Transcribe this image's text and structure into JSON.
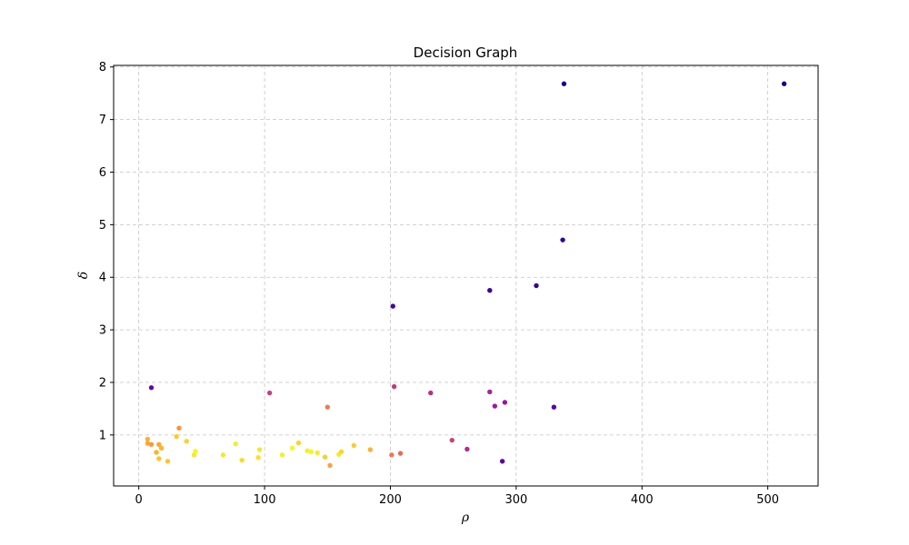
{
  "chart_data": {
    "type": "scatter",
    "title": "Decision Graph",
    "xlabel": "ρ",
    "ylabel": "δ",
    "xlim": [
      -20,
      540
    ],
    "ylim": [
      0.03,
      8.03
    ],
    "xticks": [
      0,
      100,
      200,
      300,
      400,
      500
    ],
    "yticks": [
      1,
      2,
      3,
      4,
      5,
      6,
      7,
      8
    ],
    "grid": true,
    "colormap": "plasma",
    "points": [
      {
        "x": 338,
        "y": 7.68,
        "color": "#1a0487"
      },
      {
        "x": 513,
        "y": 7.68,
        "color": "#0d0887"
      },
      {
        "x": 337,
        "y": 4.71,
        "color": "#2d0594"
      },
      {
        "x": 316,
        "y": 3.84,
        "color": "#350498"
      },
      {
        "x": 279,
        "y": 3.75,
        "color": "#3b049a"
      },
      {
        "x": 202,
        "y": 3.45,
        "color": "#42049e"
      },
      {
        "x": 10,
        "y": 1.9,
        "color": "#6a00a8"
      },
      {
        "x": 104,
        "y": 1.8,
        "color": "#c5407e"
      },
      {
        "x": 203,
        "y": 1.92,
        "color": "#c03a83"
      },
      {
        "x": 232,
        "y": 1.8,
        "color": "#b52f8c"
      },
      {
        "x": 279,
        "y": 1.82,
        "color": "#a92395"
      },
      {
        "x": 283,
        "y": 1.55,
        "color": "#a01a9c"
      },
      {
        "x": 291,
        "y": 1.62,
        "color": "#9a169f"
      },
      {
        "x": 330,
        "y": 1.53,
        "color": "#5c01a6"
      },
      {
        "x": 150,
        "y": 1.53,
        "color": "#ee7b51"
      },
      {
        "x": 249,
        "y": 0.9,
        "color": "#c7427c"
      },
      {
        "x": 261,
        "y": 0.73,
        "color": "#b12a90"
      },
      {
        "x": 289,
        "y": 0.5,
        "color": "#6001a6"
      },
      {
        "x": 201,
        "y": 0.62,
        "color": "#ed7953"
      },
      {
        "x": 208,
        "y": 0.65,
        "color": "#e66c5c"
      },
      {
        "x": 7,
        "y": 0.92,
        "color": "#fdb030"
      },
      {
        "x": 7,
        "y": 0.84,
        "color": "#fca636"
      },
      {
        "x": 10,
        "y": 0.82,
        "color": "#f9983e"
      },
      {
        "x": 14,
        "y": 0.67,
        "color": "#fbb61a"
      },
      {
        "x": 16,
        "y": 0.55,
        "color": "#fdc328"
      },
      {
        "x": 16,
        "y": 0.82,
        "color": "#fca635"
      },
      {
        "x": 18,
        "y": 0.75,
        "color": "#fdb42f"
      },
      {
        "x": 23,
        "y": 0.5,
        "color": "#fdc627"
      },
      {
        "x": 30,
        "y": 0.97,
        "color": "#fcce25"
      },
      {
        "x": 32,
        "y": 1.13,
        "color": "#f89540"
      },
      {
        "x": 38,
        "y": 0.88,
        "color": "#fbd424"
      },
      {
        "x": 44,
        "y": 0.62,
        "color": "#fde725"
      },
      {
        "x": 45,
        "y": 0.69,
        "color": "#f0f921"
      },
      {
        "x": 67,
        "y": 0.62,
        "color": "#f5e926"
      },
      {
        "x": 77,
        "y": 0.83,
        "color": "#f2f027"
      },
      {
        "x": 82,
        "y": 0.52,
        "color": "#fada24"
      },
      {
        "x": 95,
        "y": 0.57,
        "color": "#fce025"
      },
      {
        "x": 96,
        "y": 0.72,
        "color": "#f6e826"
      },
      {
        "x": 114,
        "y": 0.62,
        "color": "#f3ee27"
      },
      {
        "x": 122,
        "y": 0.75,
        "color": "#f0f921"
      },
      {
        "x": 127,
        "y": 0.85,
        "color": "#fbd524"
      },
      {
        "x": 134,
        "y": 0.7,
        "color": "#f2f027"
      },
      {
        "x": 137,
        "y": 0.68,
        "color": "#f0f921"
      },
      {
        "x": 142,
        "y": 0.66,
        "color": "#f4ed27"
      },
      {
        "x": 148,
        "y": 0.58,
        "color": "#fcce25"
      },
      {
        "x": 152,
        "y": 0.42,
        "color": "#f9a242"
      },
      {
        "x": 159,
        "y": 0.63,
        "color": "#f5eb27"
      },
      {
        "x": 161,
        "y": 0.68,
        "color": "#fbd724"
      },
      {
        "x": 171,
        "y": 0.8,
        "color": "#fcce25"
      },
      {
        "x": 184,
        "y": 0.72,
        "color": "#fbb32f"
      }
    ]
  }
}
